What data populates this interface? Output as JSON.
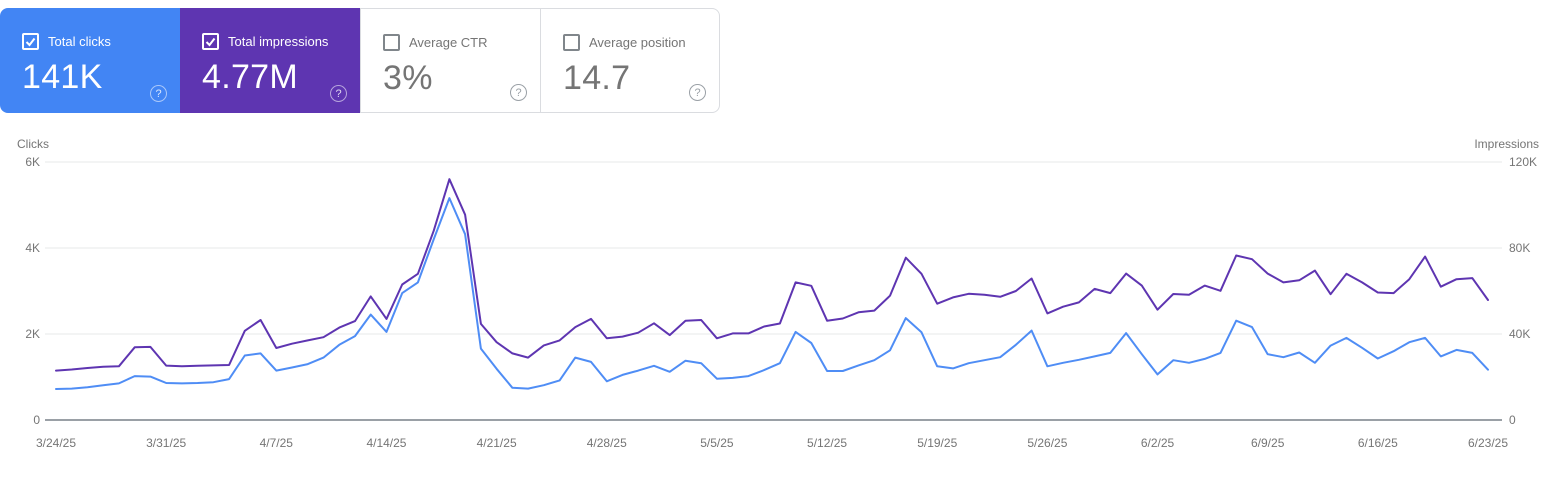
{
  "cards": [
    {
      "label": "Total clicks",
      "value": "141K",
      "checked": true
    },
    {
      "label": "Total impressions",
      "value": "4.77M",
      "checked": true
    },
    {
      "label": "Average CTR",
      "value": "3%",
      "checked": false
    },
    {
      "label": "Average position",
      "value": "14.7",
      "checked": false
    }
  ],
  "colors": {
    "clicks_card_bg": "#4285f4",
    "impressions_card_bg": "#5e35b1",
    "clicks_line": "#4f8df5",
    "impressions_line": "#5e35b1",
    "axis_text": "#757575",
    "gridline": "#e7e8ea",
    "baseline": "#9aa0a6"
  },
  "chart_data": {
    "type": "line",
    "title": "",
    "grid": true,
    "legend": "none",
    "x_tick_labels": [
      "3/24/25",
      "3/31/25",
      "4/7/25",
      "4/14/25",
      "4/21/25",
      "4/28/25",
      "5/5/25",
      "5/12/25",
      "5/19/25",
      "5/26/25",
      "6/2/25",
      "6/9/25",
      "6/16/25",
      "6/23/25"
    ],
    "x_tick_day_indexes": [
      0,
      7,
      14,
      21,
      28,
      35,
      42,
      49,
      56,
      63,
      70,
      77,
      84,
      91
    ],
    "num_points": 92,
    "left_axis": {
      "title": "Clicks",
      "ticks": [
        "6K",
        "4K",
        "2K",
        "0"
      ],
      "tick_values": [
        6000,
        4000,
        2000,
        0
      ],
      "max": 6000
    },
    "right_axis": {
      "title": "Impressions",
      "ticks": [
        "120K",
        "80K",
        "40K",
        "0"
      ],
      "tick_values": [
        120000,
        80000,
        40000,
        0
      ],
      "max": 120000
    },
    "series": [
      {
        "name": "Impressions",
        "axis": "right",
        "values": [
          23000,
          23500,
          24200,
          24800,
          25000,
          33800,
          34000,
          25300,
          25000,
          25200,
          25400,
          25600,
          41500,
          46500,
          33500,
          35500,
          37000,
          38500,
          43000,
          46000,
          57500,
          47000,
          63000,
          68000,
          88000,
          112000,
          95500,
          44700,
          36200,
          31000,
          29000,
          34700,
          37000,
          43200,
          47000,
          38000,
          38800,
          40600,
          45000,
          39500,
          46200,
          46500,
          38000,
          40300,
          40300,
          43500,
          44900,
          64000,
          62400,
          46200,
          47200,
          50100,
          50900,
          57800,
          75500,
          68000,
          54100,
          57000,
          58700,
          58300,
          57300,
          60000,
          65800,
          49600,
          52700,
          54700,
          61000,
          59000,
          68100,
          62500,
          51300,
          58600,
          58300,
          62500,
          60100,
          76500,
          74800,
          68100,
          64000,
          65000,
          69500,
          58500,
          68000,
          64000,
          59300,
          59000,
          65500,
          76000,
          62000,
          65500,
          66000,
          55800
        ]
      },
      {
        "name": "Clicks",
        "axis": "left",
        "values": [
          720,
          730,
          760,
          810,
          850,
          1020,
          1010,
          860,
          850,
          860,
          880,
          950,
          1500,
          1550,
          1150,
          1220,
          1300,
          1450,
          1750,
          1950,
          2450,
          2050,
          2950,
          3200,
          4200,
          5160,
          4320,
          1660,
          1190,
          750,
          730,
          810,
          920,
          1450,
          1350,
          900,
          1050,
          1150,
          1260,
          1120,
          1380,
          1320,
          960,
          980,
          1020,
          1160,
          1320,
          2050,
          1790,
          1140,
          1140,
          1270,
          1390,
          1620,
          2370,
          2040,
          1250,
          1200,
          1320,
          1390,
          1460,
          1750,
          2080,
          1250,
          1330,
          1400,
          1480,
          1560,
          2020,
          1530,
          1060,
          1390,
          1330,
          1420,
          1560,
          2310,
          2160,
          1530,
          1460,
          1570,
          1330,
          1730,
          1910,
          1680,
          1430,
          1600,
          1810,
          1910,
          1480,
          1630,
          1560,
          1170
        ]
      }
    ]
  }
}
